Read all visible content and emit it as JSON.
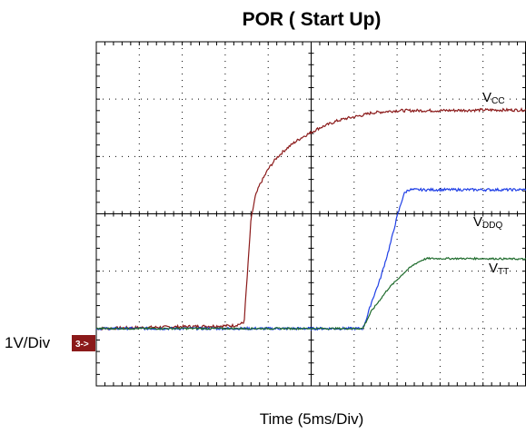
{
  "chart_data": {
    "type": "line",
    "title": "POR ( Start Up)",
    "xlabel": "Time  (5ms/Div)",
    "ylabel": "1V/Div",
    "x_unit": "ms",
    "x_per_div": 5,
    "y_per_div": 1,
    "xlim": [
      0,
      50
    ],
    "ylim": [
      -1,
      5
    ],
    "grid": true,
    "channel_marker": "3->",
    "colors": {
      "vcc": "#8B1A1A",
      "vddq": "#1F3FE6",
      "vtt": "#1E6B2C",
      "marker_bg": "#8B1A1A",
      "grid": "#000000"
    },
    "series": [
      {
        "key": "vcc",
        "name": "VCC",
        "label_main": "V",
        "label_sub": "CC",
        "color": "#8B1A1A",
        "x": [
          0,
          16,
          17.2,
          17.6,
          18,
          18.5,
          19,
          20,
          21,
          22,
          23,
          24,
          25,
          26,
          27,
          28,
          29,
          30,
          31,
          32,
          35,
          40,
          45,
          50
        ],
        "y": [
          0,
          0.05,
          0.1,
          1.0,
          1.9,
          2.3,
          2.5,
          2.78,
          2.98,
          3.12,
          3.24,
          3.34,
          3.42,
          3.5,
          3.56,
          3.62,
          3.66,
          3.69,
          3.72,
          3.76,
          3.8,
          3.8,
          3.81,
          3.81
        ]
      },
      {
        "key": "vddq",
        "name": "VDDQ",
        "label_main": "V",
        "label_sub": "DDQ",
        "color": "#1F3FE6",
        "x": [
          0,
          31,
          31.5,
          32,
          33,
          34,
          35,
          35.8,
          36.3,
          40,
          45,
          50
        ],
        "y": [
          0,
          0,
          0.2,
          0.45,
          0.85,
          1.35,
          1.95,
          2.35,
          2.42,
          2.42,
          2.42,
          2.42
        ]
      },
      {
        "key": "vtt",
        "name": "VTT",
        "label_main": "V",
        "label_sub": "TT",
        "color": "#1E6B2C",
        "x": [
          0,
          31,
          31.5,
          32,
          33,
          34,
          35,
          36,
          37,
          38,
          38.5,
          40,
          45,
          50
        ],
        "y": [
          0,
          0,
          0.15,
          0.3,
          0.5,
          0.7,
          0.85,
          1.0,
          1.12,
          1.2,
          1.22,
          1.22,
          1.22,
          1.21
        ]
      }
    ]
  }
}
